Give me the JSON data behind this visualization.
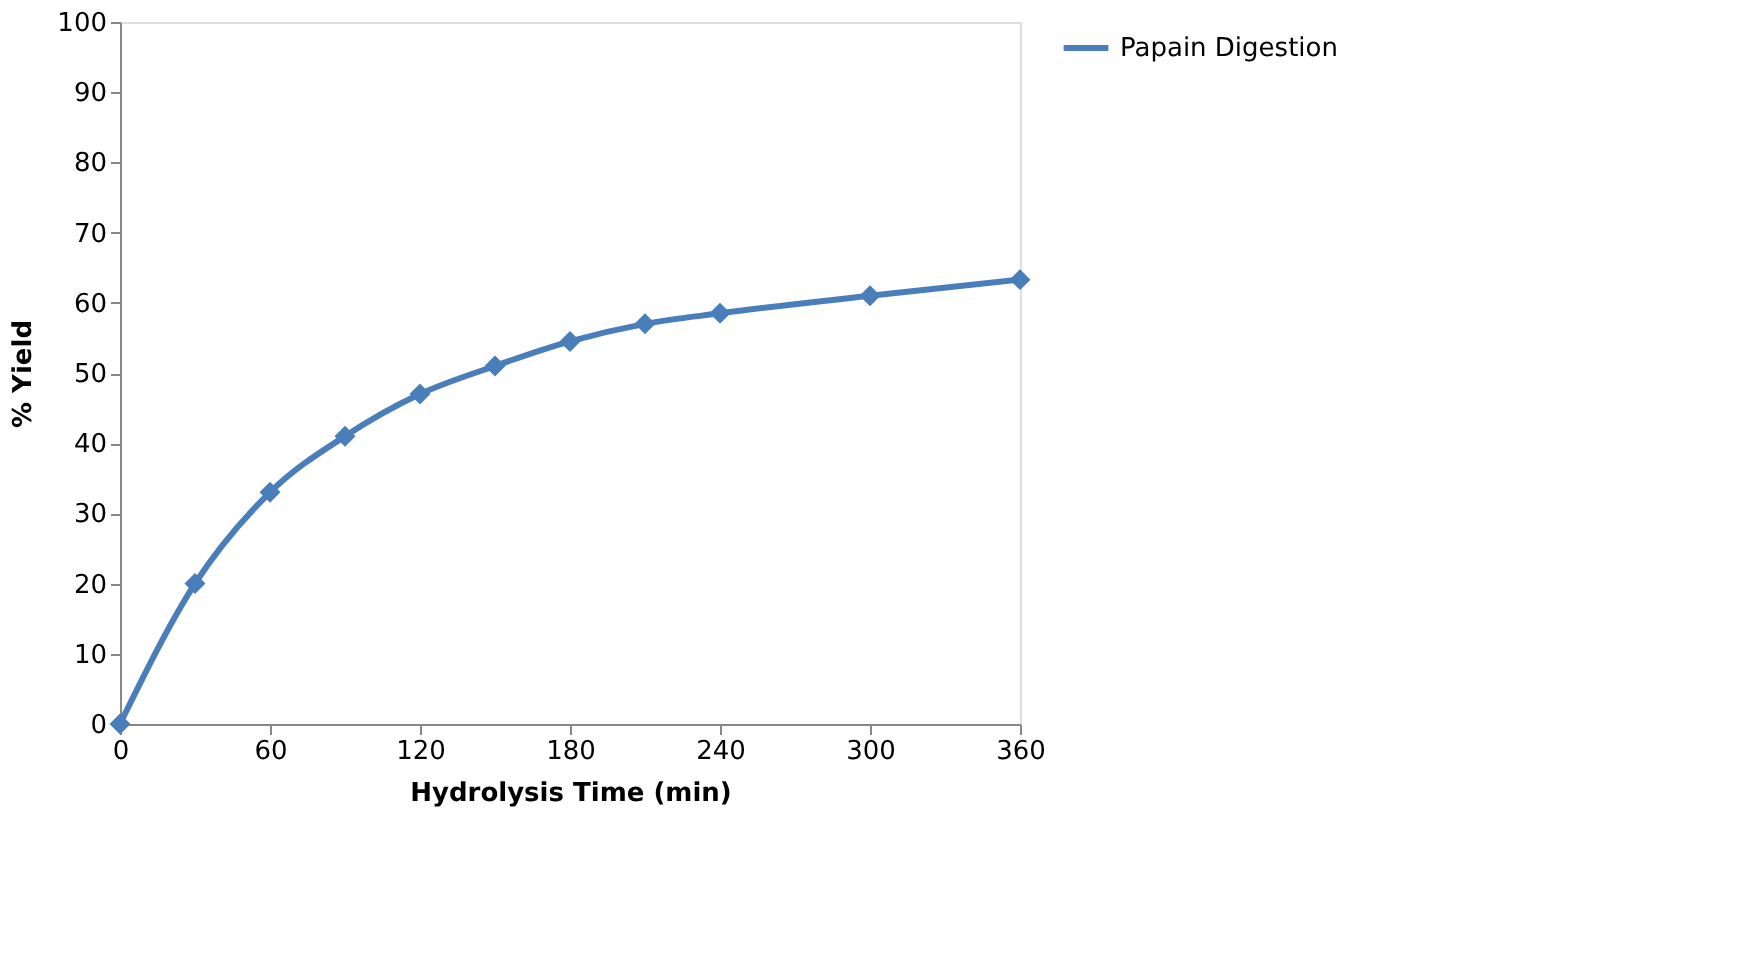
{
  "chart_data": {
    "type": "line",
    "xlabel": "Hydrolysis Time (min)",
    "ylabel": "% Yield",
    "x": [
      0,
      30,
      60,
      90,
      120,
      150,
      180,
      210,
      240,
      300,
      360
    ],
    "series": [
      {
        "name": "Papain Digestion",
        "color": "#4a7ebb",
        "values": [
          0,
          20,
          33,
          41,
          47,
          51,
          54.5,
          57,
          58.5,
          61,
          63.3
        ]
      }
    ],
    "xlim": [
      0,
      360
    ],
    "xticks": [
      0,
      60,
      120,
      180,
      240,
      300,
      360
    ],
    "ylim": [
      0,
      100
    ],
    "yticks": [
      0,
      10,
      20,
      30,
      40,
      50,
      60,
      70,
      80,
      90,
      100
    ],
    "grid": false,
    "legend": "right",
    "marker": "diamond",
    "line_style": "solid"
  }
}
